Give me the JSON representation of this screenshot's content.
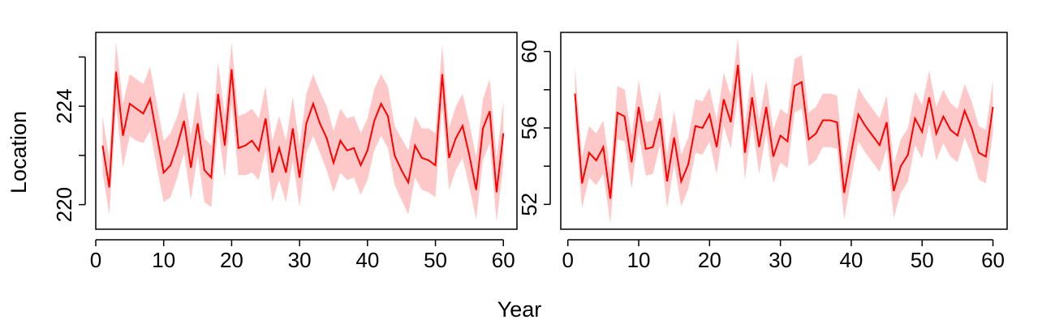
{
  "figure": {
    "xlabel": "Year",
    "ylabel": "Location"
  },
  "colors": {
    "line": "#ff0000",
    "band": "#ffc8c8",
    "axis": "#000000"
  },
  "chart_data": [
    {
      "type": "line",
      "x": [
        1,
        2,
        3,
        4,
        5,
        6,
        7,
        8,
        9,
        10,
        11,
        12,
        13,
        14,
        15,
        16,
        17,
        18,
        19,
        20,
        21,
        22,
        23,
        24,
        25,
        26,
        27,
        28,
        29,
        30,
        31,
        32,
        33,
        34,
        35,
        36,
        37,
        38,
        39,
        40,
        41,
        42,
        43,
        44,
        45,
        46,
        47,
        48,
        49,
        50,
        51,
        52,
        53,
        54,
        55,
        56,
        57,
        58,
        59,
        60
      ],
      "values": [
        222.4,
        220.7,
        225.4,
        222.8,
        224.1,
        223.9,
        223.7,
        224.3,
        222.8,
        221.3,
        221.6,
        222.4,
        223.4,
        221.5,
        223.3,
        221.4,
        221.1,
        224.5,
        222.4,
        225.5,
        222.3,
        222.4,
        222.6,
        222.2,
        223.5,
        221.3,
        222.3,
        221.3,
        223.1,
        221.1,
        223.3,
        224.1,
        223.3,
        222.7,
        221.7,
        222.6,
        222.2,
        222.3,
        221.6,
        222.2,
        223.4,
        224.1,
        223.6,
        222.0,
        221.4,
        220.9,
        222.4,
        221.9,
        221.8,
        221.6,
        225.3,
        221.9,
        222.7,
        223.2,
        222.0,
        220.6,
        223.1,
        223.8,
        220.5,
        222.9
      ],
      "lower": [
        221.3,
        219.6,
        224.0,
        221.5,
        222.8,
        222.6,
        222.5,
        223.0,
        221.5,
        220.1,
        220.3,
        221.1,
        222.1,
        220.2,
        222.0,
        220.1,
        219.9,
        223.2,
        221.1,
        224.1,
        221.2,
        221.2,
        221.3,
        221.0,
        222.2,
        220.1,
        221.0,
        220.1,
        221.8,
        219.9,
        222.1,
        222.8,
        222.1,
        221.4,
        220.5,
        221.3,
        221.0,
        221.1,
        220.4,
        221.0,
        222.2,
        222.8,
        222.3,
        220.8,
        220.2,
        219.6,
        221.1,
        220.6,
        220.5,
        220.3,
        224.0,
        220.6,
        221.4,
        221.9,
        220.7,
        219.4,
        221.8,
        222.5,
        219.3,
        221.6
      ],
      "upper": [
        223.6,
        221.9,
        226.6,
        224.1,
        225.3,
        225.1,
        224.9,
        225.6,
        224.1,
        222.6,
        222.9,
        223.6,
        224.6,
        222.8,
        224.6,
        222.7,
        222.4,
        225.8,
        223.6,
        226.6,
        223.6,
        223.7,
        223.9,
        223.5,
        224.8,
        222.6,
        223.6,
        222.6,
        224.4,
        222.4,
        224.5,
        225.3,
        224.6,
        224.0,
        223.0,
        223.9,
        223.5,
        223.6,
        222.9,
        223.5,
        224.7,
        225.3,
        224.8,
        223.2,
        222.7,
        222.2,
        223.6,
        223.1,
        223.1,
        222.9,
        226.5,
        223.1,
        224.0,
        224.5,
        223.3,
        221.9,
        224.3,
        225.1,
        221.9,
        224.2
      ],
      "xlim": [
        0,
        62
      ],
      "ylim": [
        219.0,
        227.0
      ],
      "xticks": [
        0,
        10,
        20,
        30,
        40,
        50,
        60
      ],
      "yticks_labeled": [
        220,
        224
      ],
      "yticks_minor": [
        222,
        226
      ]
    },
    {
      "type": "line",
      "x": [
        1,
        2,
        3,
        4,
        5,
        6,
        7,
        8,
        9,
        10,
        11,
        12,
        13,
        14,
        15,
        16,
        17,
        18,
        19,
        20,
        21,
        22,
        23,
        24,
        25,
        26,
        27,
        28,
        29,
        30,
        31,
        32,
        33,
        34,
        35,
        36,
        37,
        38,
        39,
        40,
        41,
        42,
        43,
        44,
        45,
        46,
        47,
        48,
        49,
        50,
        51,
        52,
        53,
        54,
        55,
        56,
        57,
        58,
        59,
        60
      ],
      "values": [
        57.8,
        53.1,
        54.7,
        54.3,
        55.0,
        52.3,
        56.8,
        56.6,
        54.2,
        57.1,
        54.9,
        55.0,
        56.5,
        53.2,
        55.5,
        53.2,
        54.1,
        56.1,
        56.0,
        56.7,
        55.0,
        57.5,
        56.3,
        59.3,
        54.7,
        57.6,
        55.0,
        57.1,
        54.5,
        55.6,
        55.3,
        58.2,
        58.4,
        55.4,
        55.7,
        56.4,
        56.4,
        56.3,
        52.6,
        54.7,
        56.7,
        56.1,
        55.6,
        55.1,
        56.3,
        52.7,
        54.0,
        54.6,
        56.5,
        55.8,
        57.6,
        55.7,
        56.6,
        55.9,
        55.6,
        56.9,
        56.0,
        54.7,
        54.5,
        57.1
      ],
      "lower": [
        56.4,
        51.8,
        53.4,
        53.0,
        53.6,
        51.0,
        55.4,
        55.3,
        52.8,
        55.7,
        53.5,
        53.6,
        55.1,
        51.8,
        54.1,
        51.9,
        52.8,
        54.7,
        54.6,
        55.3,
        53.6,
        56.1,
        54.9,
        57.8,
        53.3,
        56.2,
        53.6,
        55.7,
        53.1,
        54.2,
        53.9,
        56.8,
        57.0,
        54.0,
        54.3,
        55.0,
        55.0,
        54.9,
        51.2,
        53.3,
        55.3,
        54.7,
        54.2,
        53.7,
        54.9,
        51.3,
        52.6,
        53.2,
        55.1,
        54.4,
        56.2,
        54.3,
        55.2,
        54.5,
        54.2,
        55.5,
        54.6,
        53.3,
        53.1,
        55.7
      ],
      "upper": [
        59.2,
        54.5,
        56.1,
        55.7,
        56.4,
        53.7,
        58.2,
        58.0,
        55.6,
        58.5,
        56.3,
        56.4,
        57.9,
        54.6,
        56.9,
        54.6,
        55.5,
        57.5,
        57.4,
        58.1,
        56.4,
        58.9,
        57.7,
        60.7,
        56.1,
        59.0,
        56.4,
        58.5,
        55.9,
        57.0,
        56.7,
        59.6,
        59.8,
        56.8,
        57.1,
        57.8,
        57.8,
        57.7,
        54.0,
        56.1,
        58.1,
        57.5,
        57.0,
        56.5,
        57.7,
        54.1,
        55.4,
        56.0,
        57.9,
        57.2,
        59.0,
        57.1,
        58.0,
        57.3,
        57.0,
        58.3,
        57.4,
        56.1,
        55.9,
        58.5
      ],
      "xlim": [
        -1,
        62
      ],
      "ylim": [
        50.7,
        61.0
      ],
      "xticks": [
        0,
        10,
        20,
        30,
        40,
        50,
        60
      ],
      "yticks_labeled": [
        52,
        56,
        60
      ],
      "yticks_minor": [
        54,
        58
      ]
    }
  ]
}
